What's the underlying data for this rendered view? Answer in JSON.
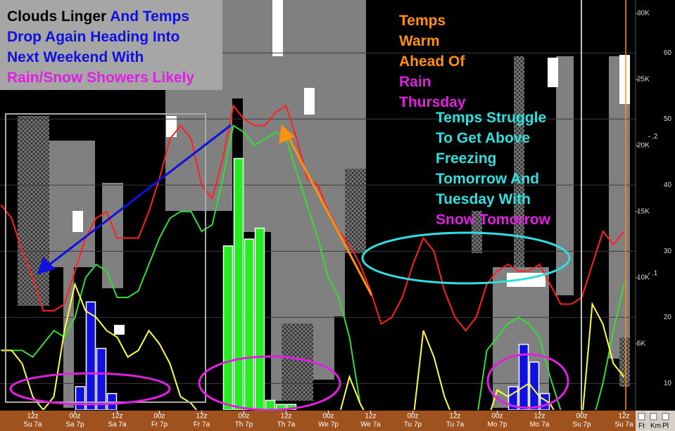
{
  "chart_data": {
    "type": "line",
    "annotations": [
      [
        [
          {
            "text": "Clouds Linger ",
            "color": "#000000"
          },
          {
            "text": "And Temps",
            "color": "#1010e0"
          }
        ],
        [
          {
            "text": "Drop Again Heading Into",
            "color": "#1010e0"
          }
        ],
        [
          {
            "text": "Next Weekend With",
            "color": "#1010e0"
          }
        ],
        [
          {
            "text": "Rain/Snow Showers Likely",
            "color": "#e020e0"
          }
        ]
      ],
      [
        [
          {
            "text": "Temps",
            "color": "#ff9010"
          }
        ],
        [
          {
            "text": "Warm",
            "color": "#ff9010"
          }
        ],
        [
          {
            "text": "Ahead Of",
            "color": "#ff9010"
          }
        ],
        [
          {
            "text": "Rain",
            "color": "#e020e0"
          }
        ],
        [
          {
            "text": "Thursday",
            "color": "#e020e0"
          }
        ]
      ],
      [
        [
          {
            "text": "Temps Struggle",
            "color": "#30e0e0"
          }
        ],
        [
          {
            "text": "To Get Above",
            "color": "#30e0e0"
          }
        ],
        [
          {
            "text": "Freezing",
            "color": "#30e0e0"
          }
        ],
        [
          {
            "text": "Tomorrow And",
            "color": "#30e0e0"
          }
        ],
        [
          {
            "text": "Tuesday With",
            "color": "#30e0e0"
          }
        ],
        [
          {
            "text": "Snow Tomorrow",
            "color": "#e020e0"
          }
        ]
      ]
    ],
    "categories": [
      [
        "12z",
        "Su 7a"
      ],
      [
        "00z",
        "Sa 7p"
      ],
      [
        "12z",
        "Sa 7a"
      ],
      [
        "00z",
        "Fr 7p"
      ],
      [
        "12z",
        "Fr 7a"
      ],
      [
        "00z",
        "Th 7p"
      ],
      [
        "12z",
        "Th 7a"
      ],
      [
        "00z",
        "We 7p"
      ],
      [
        "12z",
        "We 7a"
      ],
      [
        "00z",
        "Tu 7p"
      ],
      [
        "12z",
        "Tu 7a"
      ],
      [
        "00z",
        "Mo 7p"
      ],
      [
        "12z",
        "Mo 7a"
      ],
      [
        "00z",
        "Su 7p"
      ],
      [
        "12z",
        "Su 7a"
      ]
    ],
    "category_step": 4,
    "x": [
      -3,
      -2,
      -1,
      0,
      1,
      2,
      3,
      4,
      5,
      6,
      7,
      8,
      9,
      10,
      11,
      12,
      13,
      14,
      15,
      16,
      17,
      18,
      19,
      20,
      21,
      22,
      23,
      24,
      25,
      26,
      27,
      28,
      29,
      30,
      31,
      32,
      33,
      34,
      35,
      36,
      37,
      38,
      39,
      40,
      41,
      42,
      43,
      44,
      45,
      46,
      47,
      48,
      49,
      50,
      51,
      52,
      53,
      54,
      55,
      56
    ],
    "xlim": [
      -3.1,
      57.1
    ],
    "ylim": [
      6,
      68
    ],
    "yticks": [
      10,
      20,
      30,
      40,
      50,
      60
    ],
    "y2lim": [
      0,
      31000
    ],
    "y2ticks": [
      {
        "value": 5000,
        "label": "5K"
      },
      {
        "value": 10000,
        "label": "10K"
      },
      {
        "value": 15000,
        "label": "15K"
      },
      {
        "value": 20000,
        "label": "20K"
      },
      {
        "value": 25000,
        "label": "25K"
      },
      {
        "value": 30000,
        "label": "30K"
      }
    ],
    "y3lim": [
      0,
      0.3
    ],
    "y3ticks": [
      {
        "value": 0.1,
        "label": ".1"
      },
      {
        "value": 0.2,
        "label": ".2"
      }
    ],
    "grid": true,
    "series": [
      {
        "color": "#ff2020",
        "values": [
          37,
          35,
          30,
          26,
          21,
          21,
          22,
          27,
          32,
          35,
          36,
          32,
          32,
          32,
          36,
          41,
          47,
          49,
          47,
          40,
          38,
          44,
          52,
          50,
          49,
          49,
          51,
          52,
          47,
          41,
          40,
          36,
          33,
          31,
          28,
          24,
          19,
          20,
          23,
          28,
          32,
          30,
          24,
          20,
          18,
          20,
          25,
          27,
          28,
          27,
          27,
          28,
          25,
          22,
          22,
          23,
          28,
          33,
          31,
          33
        ]
      },
      {
        "color": "#33dd33",
        "values": [
          15,
          15,
          15,
          14,
          16,
          18,
          17,
          20,
          26,
          28,
          27,
          23,
          23,
          24,
          28,
          32,
          35,
          36,
          36,
          33,
          34,
          41,
          49,
          48,
          46,
          47,
          48,
          47,
          42,
          37,
          32,
          26,
          23,
          17,
          7,
          4,
          4,
          4,
          4,
          4,
          4,
          4,
          4,
          4,
          4,
          4,
          15,
          17,
          19,
          20,
          19,
          17,
          11,
          6,
          4,
          4,
          4,
          10,
          18,
          25
        ]
      },
      {
        "color": "#ffff40",
        "values": [
          15,
          15,
          13,
          8,
          6,
          8,
          18,
          25,
          21,
          20,
          18,
          17,
          14,
          15,
          18,
          16,
          13,
          8,
          7,
          5,
          5,
          5,
          5,
          5,
          5,
          5,
          5,
          5,
          5,
          5,
          5,
          5,
          5,
          11,
          7,
          4,
          4,
          4,
          4,
          4,
          18,
          14,
          8,
          4,
          4,
          4,
          4,
          9,
          8,
          9,
          10,
          8,
          7,
          4,
          4,
          4,
          22,
          19,
          13,
          11
        ]
      }
    ],
    "bars": [
      {
        "color": "#22ee22",
        "axis": "y3",
        "x": [
          18.5,
          19.5,
          20.5,
          21.5,
          22.5,
          23.5,
          24.5
        ],
        "values": [
          0.12,
          0.184,
          0.125,
          0.133,
          0.007,
          0.004,
          0.004
        ]
      },
      {
        "color": "#1010e0",
        "axis": "y3",
        "x": [
          4.5,
          5.5,
          6.5,
          7.5,
          45.5,
          46.5,
          47.5,
          48.5
        ],
        "values": [
          0.017,
          0.079,
          0.045,
          0.012,
          0.017,
          0.048,
          0.035,
          0.012
        ]
      }
    ],
    "ui_controls": [
      "Ft",
      "Km",
      "Pl"
    ]
  }
}
